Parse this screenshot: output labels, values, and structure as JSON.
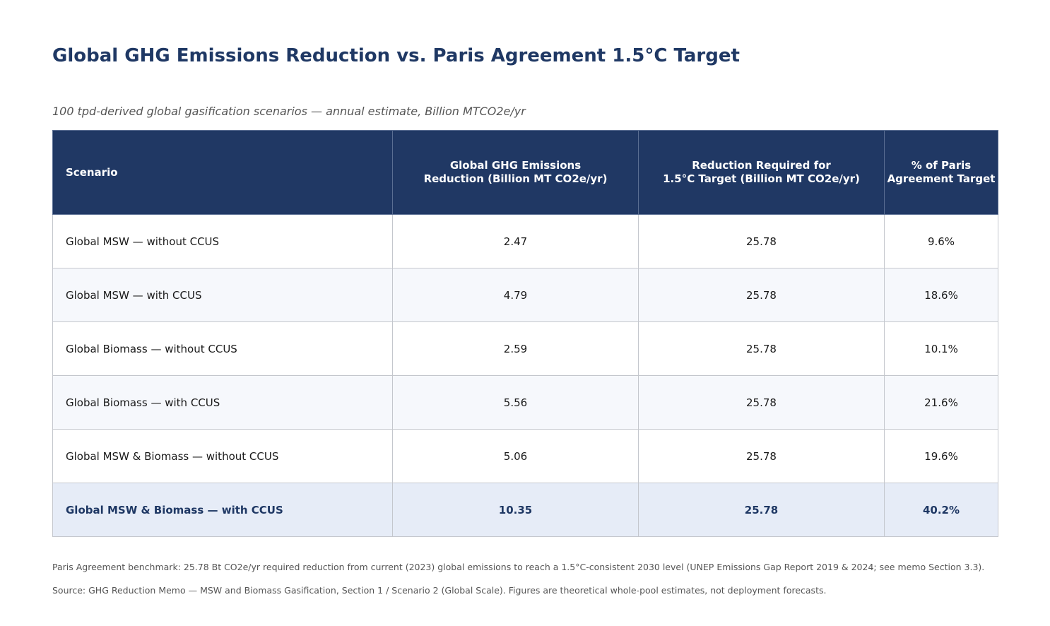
{
  "title": "Global GHG Emissions Reduction vs. Paris Agreement 1.5°C Target",
  "subtitle": "100 tpd-derived global gasification scenarios — annual estimate, Billion MTCO2e/yr",
  "table": {
    "headers": [
      [
        "Scenario"
      ],
      [
        "Global GHG Emissions",
        "Reduction (Billion MT CO2e/yr)"
      ],
      [
        "Reduction Required for",
        "1.5°C Target (Billion MT CO2e/yr)"
      ],
      [
        "% of Paris",
        "Agreement Target"
      ]
    ],
    "rows": [
      {
        "scenario": "Global MSW — without CCUS",
        "reduction": "2.47",
        "required": "25.78",
        "percent": "9.6%"
      },
      {
        "scenario": "Global MSW — with CCUS",
        "reduction": "4.79",
        "required": "25.78",
        "percent": "18.6%"
      },
      {
        "scenario": "Global Biomass — without CCUS",
        "reduction": "2.59",
        "required": "25.78",
        "percent": "10.1%"
      },
      {
        "scenario": "Global Biomass — with CCUS",
        "reduction": "5.56",
        "required": "25.78",
        "percent": "21.6%"
      },
      {
        "scenario": "Global MSW & Biomass — without CCUS",
        "reduction": "5.06",
        "required": "25.78",
        "percent": "19.6%"
      },
      {
        "scenario": "Global MSW & Biomass — with CCUS",
        "reduction": "10.35",
        "required": "25.78",
        "percent": "40.2%"
      }
    ]
  },
  "notes": {
    "benchmark": "Paris Agreement benchmark: 25.78 Bt CO2e/yr required reduction from current (2023) global emissions to reach a 1.5°C-consistent 2030 level (UNEP Emissions Gap Report 2019 & 2024; see memo Section 3.3).",
    "source": "Source: GHG Reduction Memo — MSW and Biomass Gasification, Section 1 / Scenario 2 (Global Scale). Figures are theoretical whole-pool estimates, not deployment forecasts."
  },
  "colors": {
    "header_bg": "#203864",
    "title": "#1f3864",
    "highlight_row_bg": "#e6ecf7"
  }
}
